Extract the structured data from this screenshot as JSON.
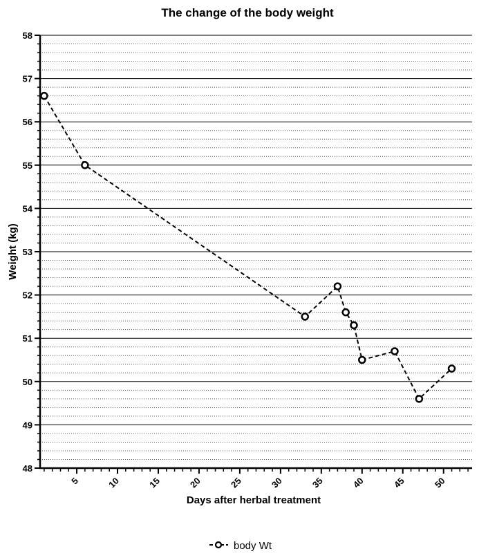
{
  "chart_data": {
    "type": "line",
    "title": "The change of the body weight",
    "xlabel": "Days after herbal treatment",
    "ylabel": "Weight (kg)",
    "xlim": [
      0.5,
      53.5
    ],
    "ylim": [
      48,
      58
    ],
    "x_ticks": [
      5,
      10,
      15,
      20,
      25,
      30,
      35,
      40,
      45,
      50
    ],
    "y_ticks": [
      48,
      49,
      50,
      51,
      52,
      53,
      54,
      55,
      56,
      57,
      58
    ],
    "y_minor_step": 0.2,
    "grid": true,
    "legend_position": "bottom-center",
    "series": [
      {
        "name": "body Wt",
        "color": "#000000",
        "line_style": "dashed",
        "marker": "open-circle",
        "x": [
          1,
          6,
          33,
          37,
          38,
          39,
          40,
          44,
          47,
          51
        ],
        "y": [
          56.6,
          55.0,
          51.5,
          52.2,
          51.6,
          51.3,
          50.5,
          50.7,
          49.6,
          50.3
        ]
      }
    ]
  }
}
